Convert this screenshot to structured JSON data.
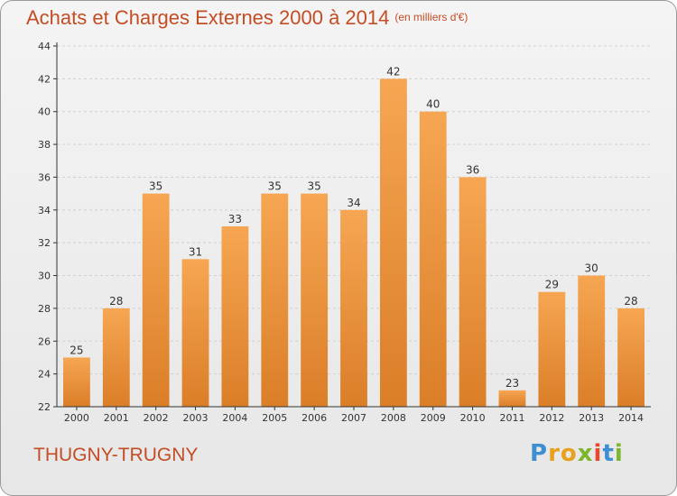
{
  "title": "Achats et Charges Externes 2000 à 2014",
  "title_unit": "(en milliers d'€)",
  "commune": "THUGNY-TRUGNY",
  "logo": {
    "text": "Proxiti",
    "colors": [
      "#3d8fd1",
      "#e8a11c",
      "#e8a11c",
      "#7cb62c",
      "#e64a2e",
      "#3d8fd1",
      "#7cb62c"
    ]
  },
  "colors": {
    "accent": "#c34d24",
    "bar_top": "#f6a652",
    "bar_bottom": "#db7e28",
    "axis": "#333333",
    "grid": "#d0d0d0"
  },
  "chart_data": {
    "type": "bar",
    "categories": [
      "2000",
      "2001",
      "2002",
      "2003",
      "2004",
      "2005",
      "2006",
      "2007",
      "2008",
      "2009",
      "2010",
      "2011",
      "2012",
      "2013",
      "2014"
    ],
    "values": [
      25,
      28,
      35,
      31,
      33,
      35,
      35,
      34,
      42,
      40,
      36,
      23,
      29,
      30,
      28
    ],
    "ylim": [
      22,
      44
    ],
    "yticks": [
      22,
      24,
      26,
      28,
      30,
      32,
      34,
      36,
      38,
      40,
      42,
      44
    ],
    "grid": true,
    "data_labels": true
  }
}
